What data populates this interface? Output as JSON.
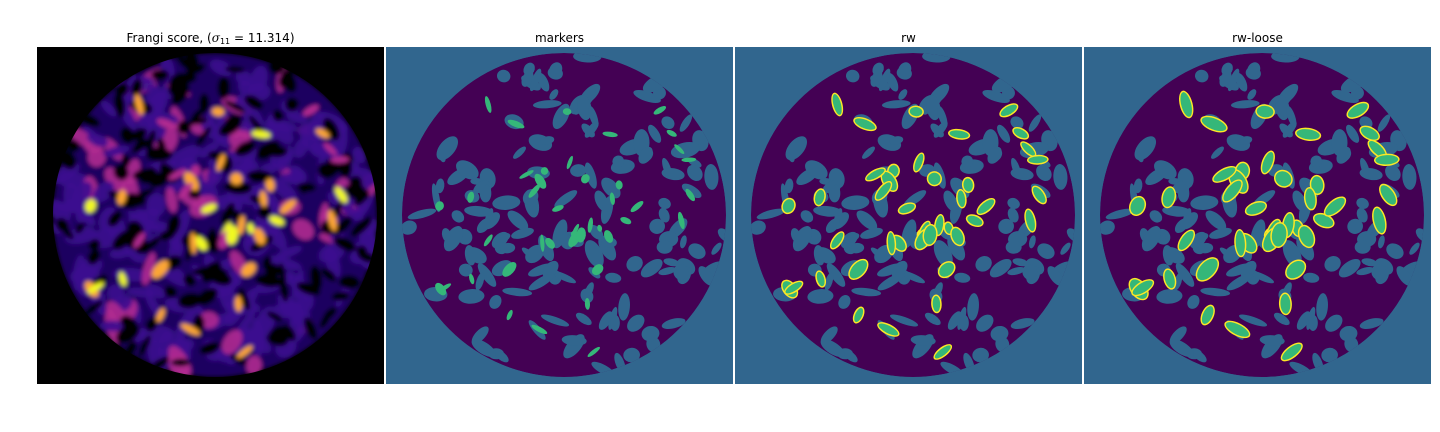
{
  "panels": [
    {
      "id": "frangi",
      "title_prefix": "Frangi score, (",
      "title_symbol": "σ",
      "title_subscript": "11",
      "title_suffix": " = 11.314)",
      "colormap": "plasma",
      "colors": {
        "background": "#000000",
        "low": "#3b0f8f",
        "mid": "#b12a90",
        "high": "#fca636",
        "peak": "#f0f921"
      }
    },
    {
      "id": "markers",
      "title": "markers",
      "colors": {
        "background": "#31668e",
        "foreground": "#440154",
        "marker": "#35b779"
      }
    },
    {
      "id": "rw",
      "title": "rw",
      "colors": {
        "background": "#31668e",
        "foreground": "#440154",
        "region": "#35b779",
        "outline": "#fde725"
      }
    },
    {
      "id": "rw-loose",
      "title": "rw-loose",
      "colors": {
        "background": "#31668e",
        "foreground": "#440154",
        "region": "#35b779",
        "outline": "#fde725"
      }
    }
  ]
}
